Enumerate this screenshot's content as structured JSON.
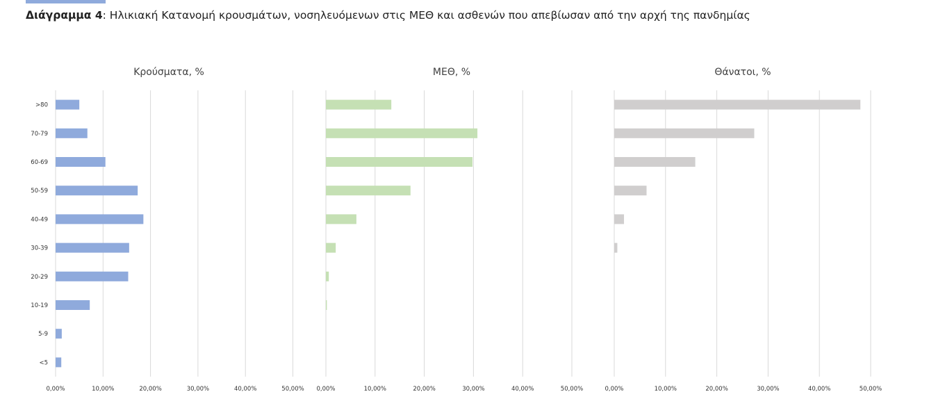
{
  "caption": {
    "label": "Διάγραμμα 4",
    "text": ": Ηλικιακή Κατανομή κρουσμάτων, νοσηλευόμενων στις ΜΕΘ και ασθενών που απεβίωσαν από την αρχή της πανδημίας"
  },
  "chart_data": [
    {
      "type": "bar",
      "orientation": "horizontal",
      "title": "Κρούσματα, %",
      "categories": [
        ">80",
        "70-79",
        "60-69",
        "50-59",
        "40-49",
        "30-39",
        "20-29",
        "10-19",
        "5-9",
        "<5"
      ],
      "values": [
        5.0,
        6.7,
        10.5,
        17.3,
        18.5,
        15.5,
        15.3,
        7.2,
        1.3,
        1.2
      ],
      "xlim": [
        0,
        50
      ],
      "xticks": [
        "0,00%",
        "10,00%",
        "20,00%",
        "30,00%",
        "40,00%",
        "50,00%"
      ],
      "color": "#8faadc",
      "grid": true
    },
    {
      "type": "bar",
      "orientation": "horizontal",
      "title": "ΜΕΘ, %",
      "categories": [
        ">80",
        "70-79",
        "60-69",
        "50-59",
        "40-49",
        "30-39",
        "20-29",
        "10-19",
        "5-9",
        "<5"
      ],
      "values": [
        13.3,
        30.8,
        29.8,
        17.2,
        6.2,
        2.0,
        0.6,
        0.2,
        0,
        0
      ],
      "xlim": [
        0,
        50
      ],
      "xticks": [
        "0,00%",
        "10,00%",
        "20,00%",
        "30,00%",
        "40,00%",
        "50,00%"
      ],
      "color": "#c5e0b4",
      "grid": true
    },
    {
      "type": "bar",
      "orientation": "horizontal",
      "title": "Θάνατοι, %",
      "categories": [
        ">80",
        "70-79",
        "60-69",
        "50-59",
        "40-49",
        "30-39",
        "20-29",
        "10-19",
        "5-9",
        "<5"
      ],
      "values": [
        48.0,
        27.3,
        15.8,
        6.3,
        1.9,
        0.6,
        0,
        0,
        0,
        0
      ],
      "xlim": [
        0,
        50
      ],
      "xticks": [
        "0,00%",
        "10,00%",
        "20,00%",
        "30,00%",
        "40,00%",
        "50,00%"
      ],
      "color": "#d0cece",
      "grid": true
    }
  ]
}
